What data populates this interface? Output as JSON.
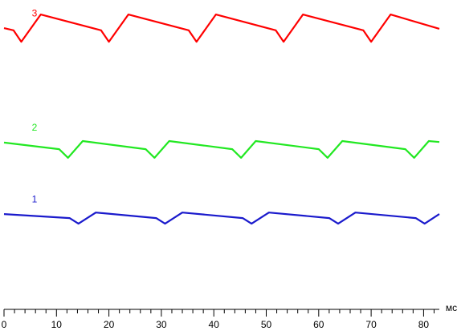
{
  "chart_data": {
    "type": "line",
    "xlabel": "мс",
    "xlim": [
      0,
      83
    ],
    "ylim": [
      0,
      100
    ],
    "xticks": [
      0,
      10,
      20,
      30,
      40,
      50,
      60,
      70,
      80
    ],
    "xminorticks": [
      2,
      4,
      6,
      8,
      12,
      14,
      16,
      18,
      22,
      24,
      26,
      28,
      32,
      34,
      36,
      38,
      42,
      44,
      46,
      48,
      52,
      54,
      56,
      58,
      62,
      64,
      66,
      68,
      72,
      74,
      76,
      78,
      82
    ],
    "series": [
      {
        "name": "3",
        "color": "#ff0000",
        "x": [
          0,
          1.8,
          3.3,
          7.0,
          18.5,
          20.0,
          23.7,
          35.2,
          36.7,
          40.4,
          51.8,
          53.3,
          57.0,
          68.5,
          70.0,
          73.7,
          83.0
        ],
        "values": [
          90.9,
          90.2,
          86.5,
          95.3,
          90.2,
          86.5,
          95.3,
          90.2,
          86.5,
          95.3,
          90.2,
          86.5,
          95.3,
          90.2,
          86.5,
          95.3,
          90.7
        ]
      },
      {
        "name": "2",
        "color": "#22e822",
        "x": [
          0,
          10.5,
          12.2,
          15.0,
          27.0,
          28.7,
          31.5,
          43.5,
          45.2,
          48.0,
          60.0,
          61.7,
          64.5,
          76.5,
          78.2,
          81.0,
          83.0
        ],
        "values": [
          53.9,
          51.8,
          49.0,
          54.4,
          51.8,
          49.0,
          54.4,
          51.8,
          49.0,
          54.4,
          51.8,
          49.0,
          54.4,
          51.8,
          49.0,
          54.4,
          54.1
        ]
      },
      {
        "name": "1",
        "color": "#1a1acc",
        "x": [
          0,
          12.5,
          14.2,
          17.5,
          29.0,
          30.7,
          34.0,
          45.5,
          47.2,
          50.5,
          62.0,
          63.7,
          67.0,
          78.5,
          80.2,
          83.0
        ],
        "values": [
          30.8,
          29.5,
          27.7,
          31.3,
          29.5,
          27.7,
          31.3,
          29.5,
          27.7,
          31.3,
          29.5,
          27.7,
          31.3,
          29.5,
          27.7,
          30.8
        ]
      }
    ]
  }
}
